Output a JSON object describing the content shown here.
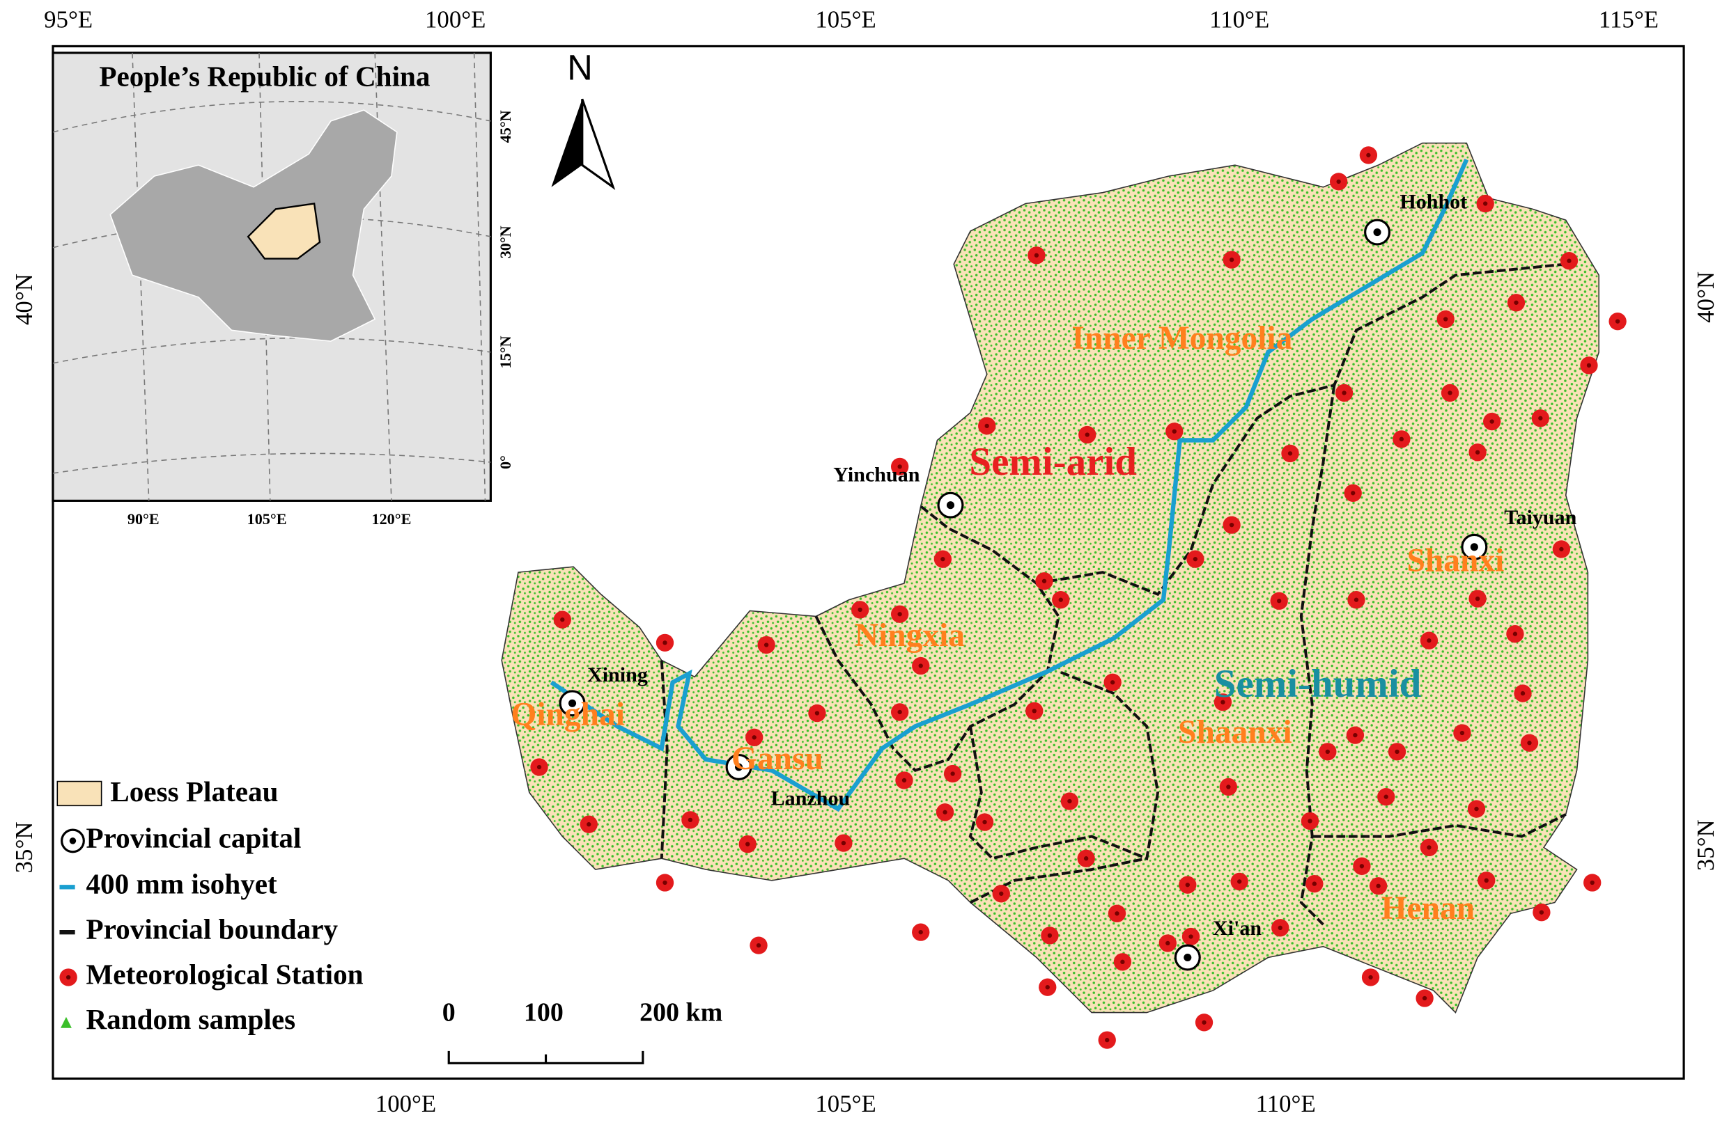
{
  "axes": {
    "top": [
      "95°E",
      "100°E",
      "105°E",
      "110°E",
      "115°E"
    ],
    "bottom": [
      "100°E",
      "105°E",
      "110°E"
    ],
    "left": [
      "40°N",
      "35°N"
    ],
    "right": [
      "40°N",
      "35°N"
    ]
  },
  "north": "N",
  "inset": {
    "title": "People’s Republic of China",
    "x_labels": [
      "90°E",
      "105°E",
      "120°E"
    ],
    "y_labels": [
      "45°N",
      "30°N",
      "15°N",
      "0°"
    ]
  },
  "legend": [
    "Loess Plateau",
    "Provincial capital",
    "400 mm  isohyet",
    "Provincial boundary",
    "Meteorological Station",
    "Random samples"
  ],
  "scale_bar": [
    "0",
    "100",
    "200  km"
  ],
  "regions": [
    "Inner Mongolia",
    "Semi-arid",
    "Ningxia",
    "Semi-humid",
    "Shaanxi",
    "Shanxi",
    "Qinghai",
    "Gansu",
    "Henan"
  ],
  "cities": [
    "Hohhot",
    "Yinchuan",
    "Taiyuan",
    "Xining",
    "Lanzhou",
    "Xi'an"
  ]
}
